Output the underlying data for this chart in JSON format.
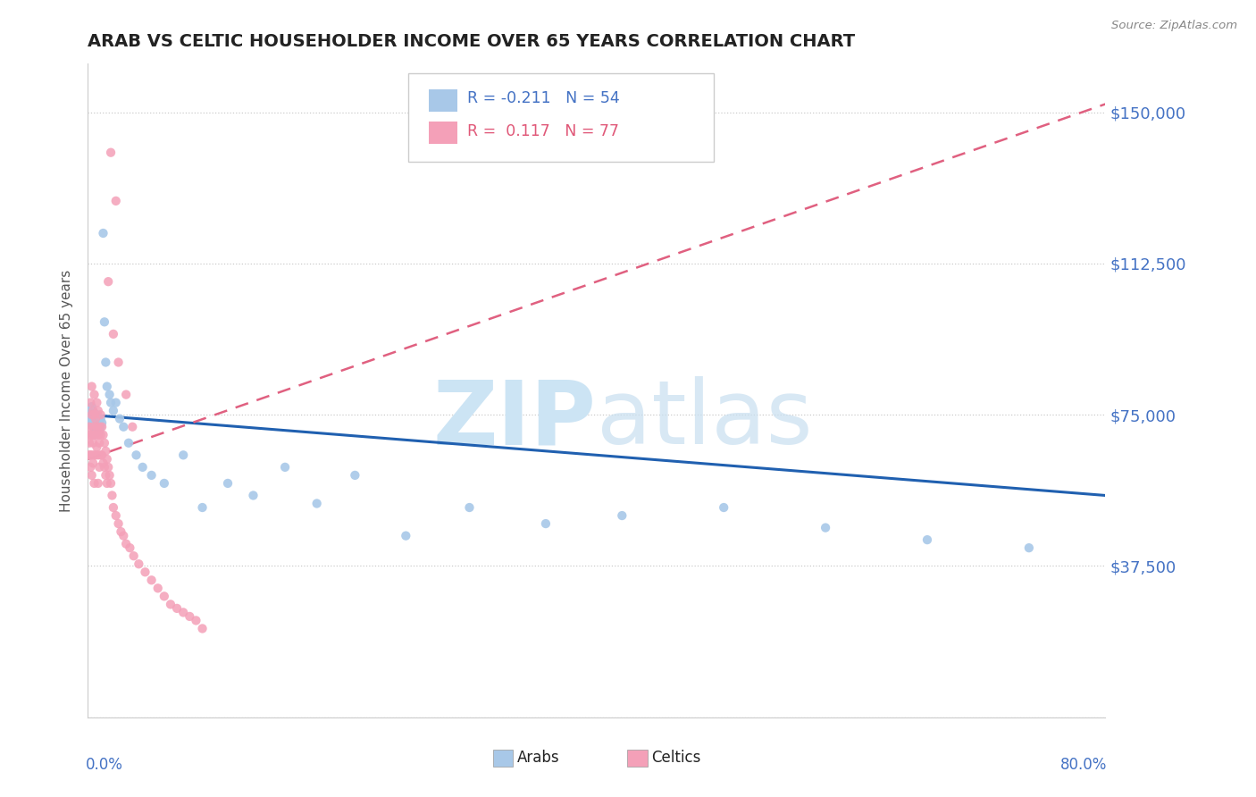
{
  "title": "ARAB VS CELTIC HOUSEHOLDER INCOME OVER 65 YEARS CORRELATION CHART",
  "source": "Source: ZipAtlas.com",
  "ylabel": "Householder Income Over 65 years",
  "yticks": [
    0,
    37500,
    75000,
    112500,
    150000
  ],
  "ytick_labels": [
    "",
    "$37,500",
    "$75,000",
    "$112,500",
    "$150,000"
  ],
  "xmin": 0.0,
  "xmax": 0.8,
  "ymin": 0,
  "ymax": 162000,
  "arab_R": -0.211,
  "arab_N": 54,
  "celtic_R": 0.117,
  "celtic_N": 77,
  "arab_color": "#a8c8e8",
  "celtic_color": "#f4a0b8",
  "arab_line_color": "#2060b0",
  "celtic_line_color": "#e06080",
  "watermark_zip": "ZIP",
  "watermark_atlas": "atlas",
  "watermark_color": "#cce4f4",
  "arab_x": [
    0.001,
    0.002,
    0.002,
    0.003,
    0.003,
    0.003,
    0.004,
    0.004,
    0.004,
    0.005,
    0.005,
    0.005,
    0.006,
    0.006,
    0.007,
    0.007,
    0.007,
    0.008,
    0.008,
    0.009,
    0.009,
    0.01,
    0.01,
    0.011,
    0.012,
    0.013,
    0.014,
    0.015,
    0.017,
    0.018,
    0.02,
    0.022,
    0.025,
    0.028,
    0.032,
    0.038,
    0.043,
    0.05,
    0.06,
    0.075,
    0.09,
    0.11,
    0.13,
    0.155,
    0.18,
    0.21,
    0.25,
    0.3,
    0.36,
    0.42,
    0.5,
    0.58,
    0.66,
    0.74
  ],
  "arab_y": [
    75000,
    74000,
    76000,
    73000,
    75000,
    77000,
    72000,
    74000,
    76000,
    73000,
    75000,
    70000,
    74000,
    72000,
    73000,
    75000,
    71000,
    74000,
    72000,
    73000,
    71000,
    74000,
    72000,
    73000,
    120000,
    98000,
    88000,
    82000,
    80000,
    78000,
    76000,
    78000,
    74000,
    72000,
    68000,
    65000,
    62000,
    60000,
    58000,
    65000,
    52000,
    58000,
    55000,
    62000,
    53000,
    60000,
    45000,
    52000,
    48000,
    50000,
    52000,
    47000,
    44000,
    42000
  ],
  "celtic_x": [
    0.001,
    0.001,
    0.001,
    0.002,
    0.002,
    0.002,
    0.002,
    0.003,
    0.003,
    0.003,
    0.003,
    0.003,
    0.004,
    0.004,
    0.004,
    0.004,
    0.005,
    0.005,
    0.005,
    0.005,
    0.005,
    0.006,
    0.006,
    0.006,
    0.007,
    0.007,
    0.007,
    0.008,
    0.008,
    0.008,
    0.008,
    0.009,
    0.009,
    0.009,
    0.01,
    0.01,
    0.01,
    0.011,
    0.011,
    0.012,
    0.012,
    0.013,
    0.013,
    0.014,
    0.014,
    0.015,
    0.015,
    0.016,
    0.017,
    0.018,
    0.019,
    0.02,
    0.022,
    0.024,
    0.026,
    0.028,
    0.03,
    0.033,
    0.036,
    0.04,
    0.045,
    0.05,
    0.055,
    0.06,
    0.065,
    0.07,
    0.075,
    0.08,
    0.085,
    0.09,
    0.018,
    0.022,
    0.016,
    0.02,
    0.024,
    0.03,
    0.035
  ],
  "celtic_y": [
    72000,
    68000,
    65000,
    78000,
    70000,
    65000,
    62000,
    82000,
    75000,
    70000,
    65000,
    60000,
    76000,
    72000,
    68000,
    63000,
    80000,
    75000,
    70000,
    65000,
    58000,
    74000,
    70000,
    65000,
    78000,
    72000,
    67000,
    76000,
    70000,
    65000,
    58000,
    72000,
    68000,
    62000,
    75000,
    70000,
    65000,
    72000,
    65000,
    70000,
    63000,
    68000,
    62000,
    66000,
    60000,
    64000,
    58000,
    62000,
    60000,
    58000,
    55000,
    52000,
    50000,
    48000,
    46000,
    45000,
    43000,
    42000,
    40000,
    38000,
    36000,
    34000,
    32000,
    30000,
    28000,
    27000,
    26000,
    25000,
    24000,
    22000,
    140000,
    128000,
    108000,
    95000,
    88000,
    80000,
    72000
  ]
}
